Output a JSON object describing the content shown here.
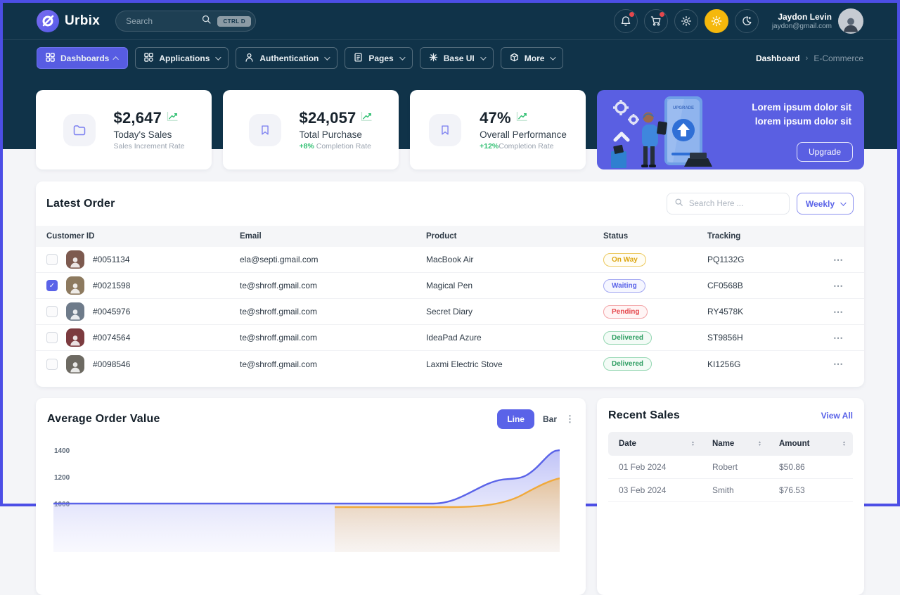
{
  "colors": {
    "accent": "#5a63e8",
    "navy": "#103349",
    "frame": "#4c4ee6",
    "green": "#2fbf71",
    "yellow": "#f5b80c",
    "red": "#e5484d",
    "orange_series": "#f0a93a"
  },
  "header": {
    "brand": "Urbix",
    "search": {
      "placeholder": "Search",
      "shortcut": "CTRL D",
      "icon": "magnifier"
    },
    "icons": {
      "bell": "notifications",
      "cart": "shopping-cart",
      "gear": "settings",
      "sun": "light-mode-active",
      "moon": "dark-mode"
    },
    "user": {
      "name": "Jaydon Levin",
      "email": "jaydon@gmail.com"
    }
  },
  "nav": {
    "items": [
      {
        "label": "Dashboards",
        "active": true
      },
      {
        "label": "Applications",
        "active": false
      },
      {
        "label": "Authentication",
        "active": false
      },
      {
        "label": "Pages",
        "active": false
      },
      {
        "label": "Base UI",
        "active": false
      },
      {
        "label": "More",
        "active": false
      }
    ],
    "breadcrumb": {
      "current": "Dashboard",
      "page": "E-Commerce"
    }
  },
  "stats": [
    {
      "icon": "folder",
      "value": "$2,647",
      "label": "Today's Sales",
      "sub_highlight": "",
      "sub_text": "Sales Increment Rate"
    },
    {
      "icon": "bookmark",
      "value": "$24,057",
      "label": "Total Purchase",
      "sub_highlight": "+8%",
      "sub_text": " Completion Rate"
    },
    {
      "icon": "bookmark",
      "value": "47%",
      "label": "Overall Performance",
      "sub_highlight": "+12%",
      "sub_text": "Completion Rate"
    }
  ],
  "promo": {
    "text": "Lorem ipsum dolor sit lorem ipsum dolor sit",
    "button": "Upgrade"
  },
  "latest_order": {
    "title": "Latest Order",
    "search_placeholder": "Search Here ...",
    "filter_label": "Weekly",
    "columns": [
      "Customer ID",
      "Email",
      "Product",
      "Status",
      "Tracking"
    ],
    "rows": [
      {
        "id": "#0051134",
        "email": "ela@septi.gmail.com",
        "product": "MacBook Air",
        "status": "On Way",
        "status_type": "onway",
        "tracking": "PQ1132G",
        "checked": false,
        "avatar_color": "#7d5a4f"
      },
      {
        "id": "#0021598",
        "email": "te@shroff.gmail.com",
        "product": "Magical Pen",
        "status": "Waiting",
        "status_type": "waiting",
        "tracking": "CF0568B",
        "checked": true,
        "avatar_color": "#8d7a5f"
      },
      {
        "id": "#0045976",
        "email": "te@shroff.gmail.com",
        "product": "Secret Diary",
        "status": "Pending",
        "status_type": "pending",
        "tracking": "RY4578K",
        "checked": false,
        "avatar_color": "#6e7b8a"
      },
      {
        "id": "#0074564",
        "email": "te@shroff.gmail.com",
        "product": "IdeaPad Azure",
        "status": "Delivered",
        "status_type": "delivered",
        "tracking": "ST9856H",
        "checked": false,
        "avatar_color": "#7c3b3f"
      },
      {
        "id": "#0098546",
        "email": "te@shroff.gmail.com",
        "product": "Laxmi Electric Stove",
        "status": "Delivered",
        "status_type": "delivered",
        "tracking": "KI1256G",
        "checked": false,
        "avatar_color": "#6d6a62"
      }
    ]
  },
  "avg_order": {
    "title": "Average Order Value",
    "toggle_line": "Line",
    "toggle_bar": "Bar",
    "active_toggle": "Line",
    "y_ticks": [
      "1400",
      "1200",
      "1000"
    ],
    "chart_data": {
      "type": "area",
      "title": "Average Order Value",
      "grid": false,
      "legend": "none",
      "ylim_visible": [
        1000,
        1450
      ],
      "y_ticks_visible": [
        1400,
        1200,
        1000
      ],
      "series": [
        {
          "name": "primary",
          "color": "#5a63e8",
          "values": [
            1005,
            1005,
            1005,
            1005,
            1020,
            1090,
            1190,
            1235,
            1245,
            1330,
            1400
          ]
        },
        {
          "name": "secondary",
          "color": "#f0a93a",
          "values": [
            995,
            995,
            995,
            995,
            995,
            995,
            1000,
            1010,
            1080,
            1160,
            1200
          ]
        }
      ]
    }
  },
  "recent_sales": {
    "title": "Recent Sales",
    "view_all": "View All",
    "columns": [
      "Date",
      "Name",
      "Amount"
    ],
    "rows": [
      [
        "01 Feb 2024",
        "Robert",
        "$50.86"
      ],
      [
        "03 Feb 2024",
        "Smith",
        "$76.53"
      ]
    ]
  }
}
